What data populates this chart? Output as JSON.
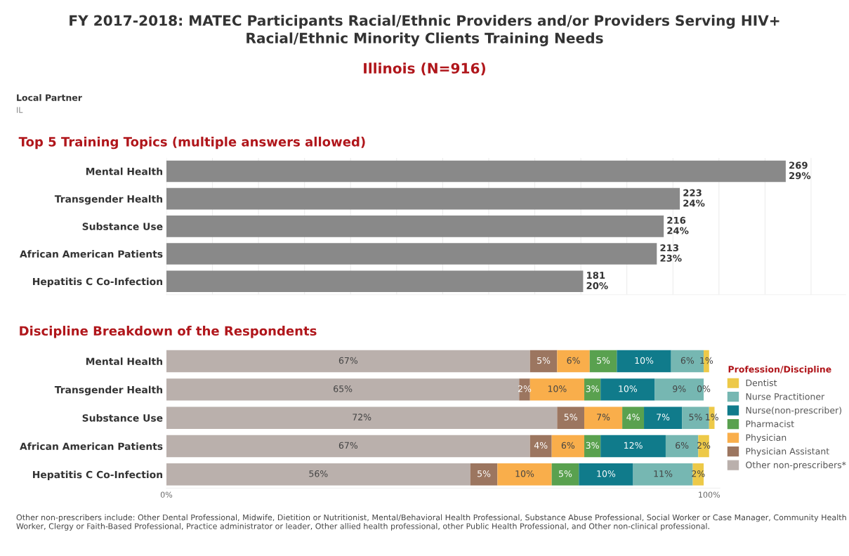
{
  "chart_data": [
    {
      "type": "bar",
      "orientation": "horizontal",
      "title": "FY 2017-2018: MATEC Participants Racial/Ethnic Providers and/or Providers Serving HIV+\nRacial/Ethnic Minority Clients Training Needs",
      "subtitle": "Illinois (N=916)",
      "annotations": [
        "Local Partner",
        "IL",
        "Top 5 Training Topics (multiple answers allowed)"
      ],
      "categories": [
        "Mental Health",
        "Transgender Health",
        "Substance Use",
        "African American Patients",
        "Hepatitis C Co-Infection"
      ],
      "values": [
        269,
        223,
        216,
        213,
        181
      ],
      "color": "#898989",
      "value_labels": [
        "269\n29%",
        "223\n24%",
        "216\n24%",
        "213\n23%",
        "181\n20%"
      ],
      "xlim": [
        0,
        295
      ],
      "xticks": [
        {
          "value": 0,
          "label": null
        },
        {
          "value": 20,
          "label": null
        },
        {
          "value": 40,
          "label": null
        },
        {
          "value": 60,
          "label": null
        },
        {
          "value": 80,
          "label": null
        },
        {
          "value": 100,
          "label": null
        },
        {
          "value": 120,
          "label": null
        },
        {
          "value": 140,
          "label": null
        },
        {
          "value": 160,
          "label": null
        },
        {
          "value": 180,
          "label": null
        },
        {
          "value": 200,
          "label": null
        },
        {
          "value": 220,
          "label": null
        },
        {
          "value": 240,
          "label": null
        },
        {
          "value": 260,
          "label": null
        },
        {
          "value": 280,
          "label": null
        }
      ],
      "grid": "x",
      "tick_labels": "y"
    },
    {
      "type": "bar",
      "orientation": "horizontal",
      "stacked": true,
      "title": "Discipline Breakdown of the Respondents",
      "legend_title": "Profession/Discipline",
      "annotations": [
        "Other non-prescribers include: Other Dental Professional, Midwife, Dietition or Nutritionist, Mental/Behavioral Health Professional, Substance Abuse Professional, Social Worker or Case Manager, Community Health Worker, Clergy or Faith-Based Professional, Practice administrator or leader, Other allied health professional, other Public Health Professional, and Other non-clinical professional."
      ],
      "categories": [
        "Mental Health",
        "Transgender Health",
        "Substance Use",
        "African American Patients",
        "Hepatitis C Co-Infection"
      ],
      "series": [
        {
          "name": "Other non-prescribers*",
          "color": "#bab0ac",
          "values": [
            67,
            65,
            72,
            67,
            56
          ],
          "value_labels": [
            "67%",
            "65%",
            "72%",
            "67%",
            "56%"
          ]
        },
        {
          "name": "Physician Assistant",
          "color": "#9c7660",
          "values": [
            5,
            2,
            5,
            4,
            5
          ],
          "value_labels": [
            "5%",
            "2%",
            "5%",
            "4%",
            "5%"
          ]
        },
        {
          "name": "Physician",
          "color": "#f9ae4b",
          "values": [
            6,
            10,
            7,
            6,
            10
          ],
          "value_labels": [
            "6%",
            "10%",
            "7%",
            "6%",
            "10%"
          ]
        },
        {
          "name": "Pharmacist",
          "color": "#59a14f",
          "values": [
            5,
            3,
            4,
            3,
            5
          ],
          "value_labels": [
            "5%",
            "3%",
            "4%",
            "3%",
            "5%"
          ]
        },
        {
          "name": "Nurse(non-prescriber)",
          "color": "#107b8b",
          "values": [
            10,
            10,
            7,
            12,
            10
          ],
          "value_labels": [
            "10%",
            "10%",
            "7%",
            "12%",
            "10%"
          ]
        },
        {
          "name": "Nurse Practitioner",
          "color": "#76b7b2",
          "values": [
            6,
            9,
            5,
            6,
            11
          ],
          "value_labels": [
            "6%",
            "9%",
            "5%",
            "6%",
            "11%"
          ]
        },
        {
          "name": "Dentist",
          "color": "#edc948",
          "values": [
            1,
            0,
            1,
            2,
            2
          ],
          "value_labels": [
            "1%",
            "0%",
            "1%",
            "2%",
            "2%"
          ]
        }
      ],
      "xlim": [
        0,
        102
      ],
      "xticks": [
        {
          "value": 0,
          "label": "0%"
        },
        {
          "value": 100,
          "label": "100%"
        }
      ],
      "legend": "right",
      "grid": false
    }
  ]
}
